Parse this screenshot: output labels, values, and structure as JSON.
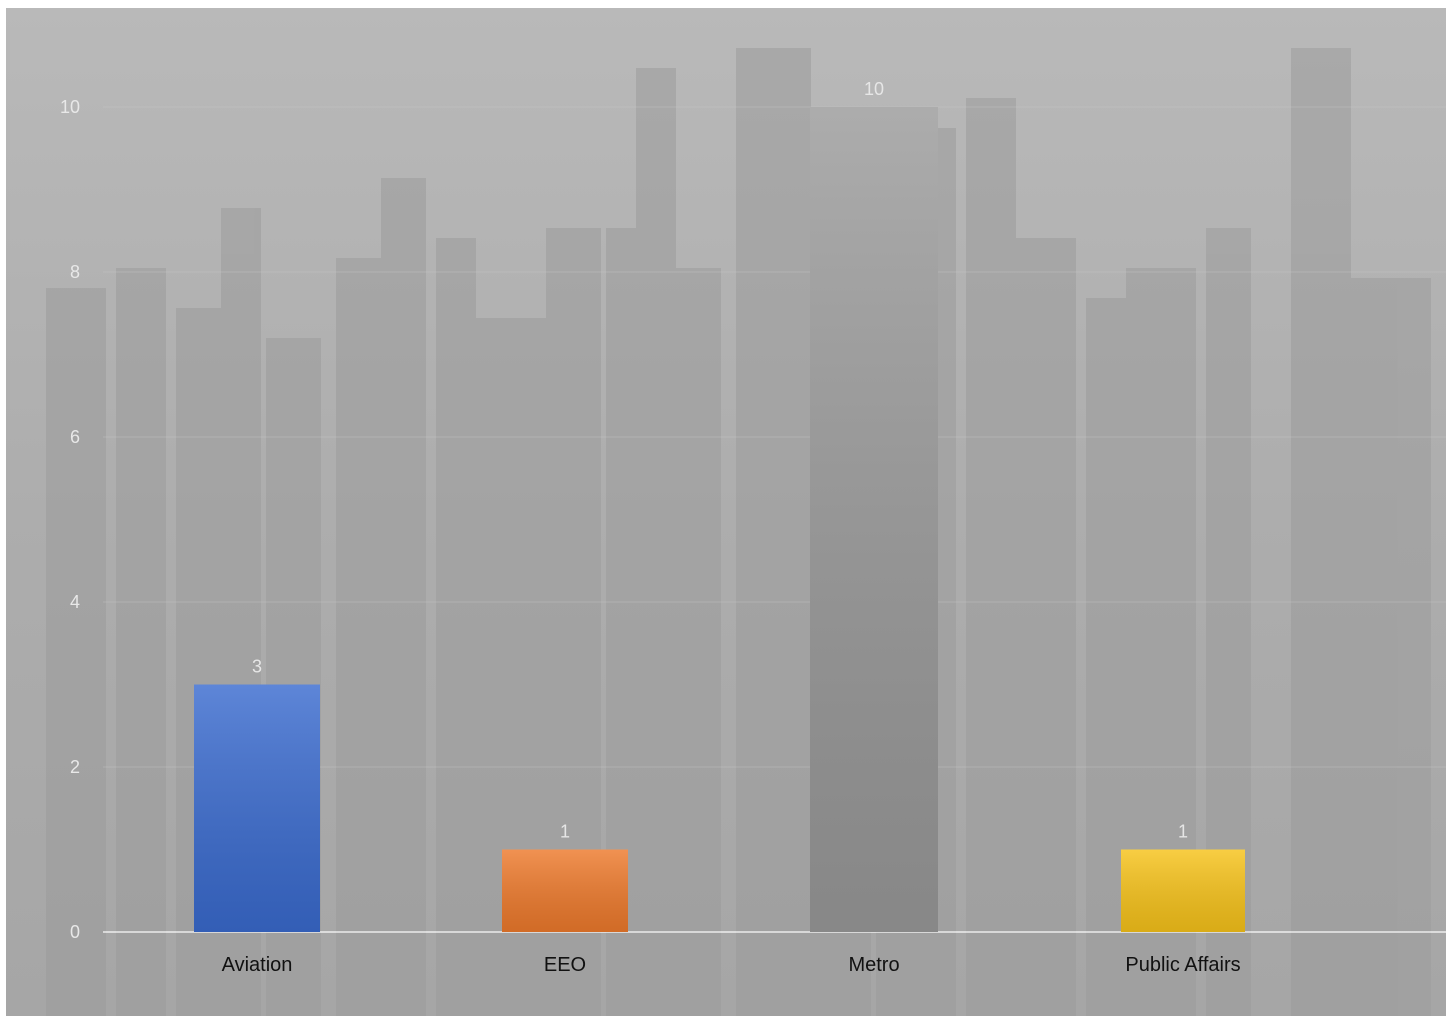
{
  "chart_data": {
    "type": "bar",
    "title": "",
    "xlabel": "",
    "ylabel": "",
    "categories": [
      "Aviation",
      "EEO",
      "Metro",
      "Public Affairs"
    ],
    "values": [
      3,
      1,
      10,
      1
    ],
    "data_labels": [
      "3",
      "1",
      "10",
      "1"
    ],
    "bar_colors": [
      "#3a6bcf",
      "#ee7a2c",
      "#9a9a9a",
      "#f7c31a"
    ],
    "yticks": [
      "0",
      "2",
      "4",
      "6",
      "8",
      "10"
    ],
    "ylim": [
      0,
      11.2
    ],
    "grid": true,
    "legend": "none"
  }
}
